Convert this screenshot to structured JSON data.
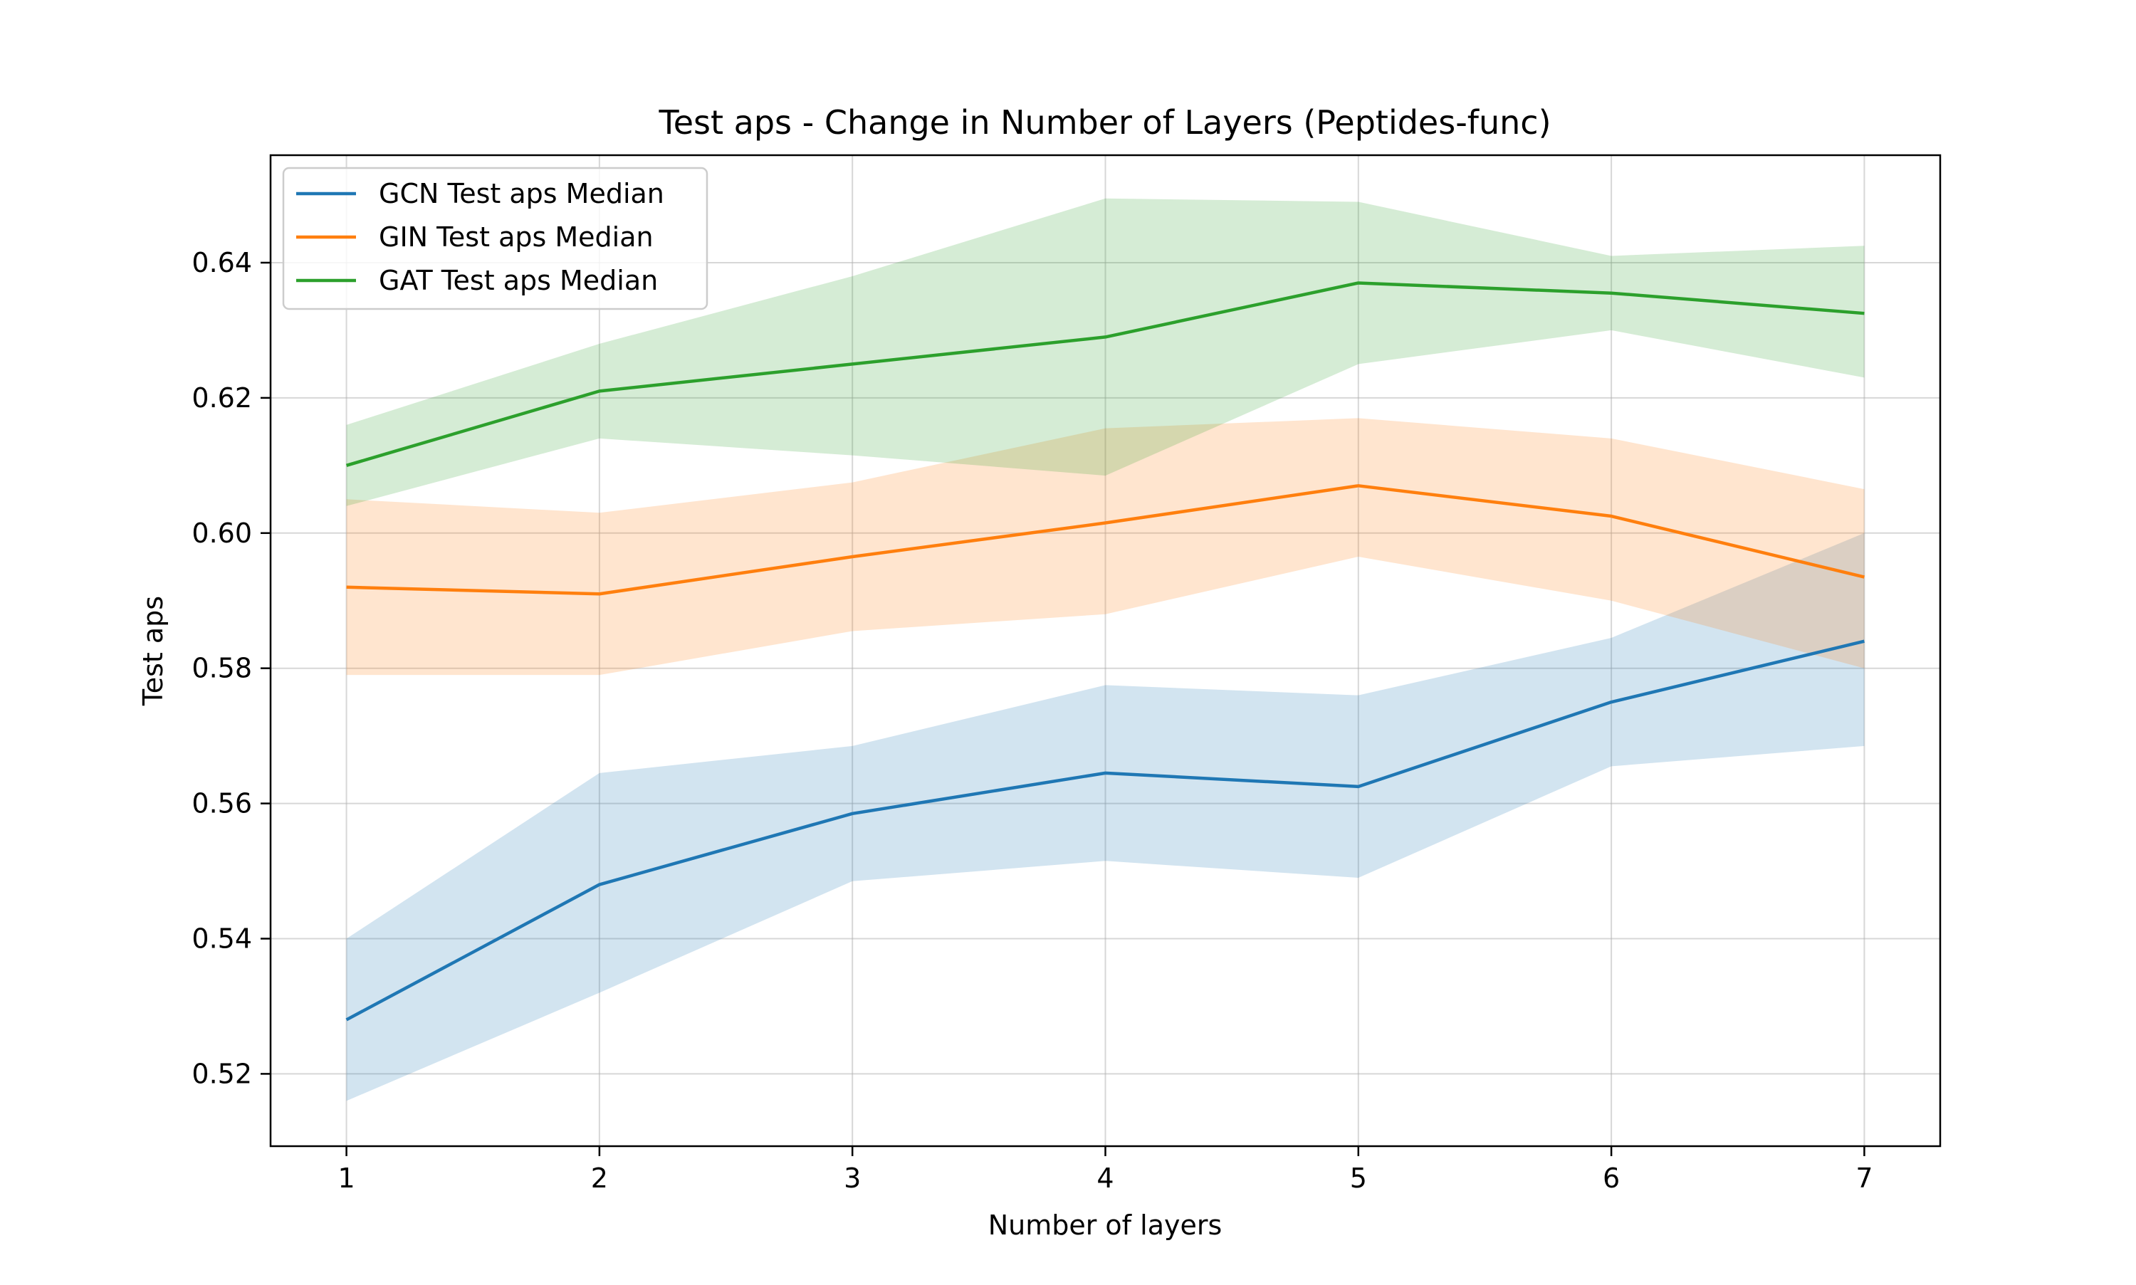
{
  "chart_data": {
    "type": "line",
    "title": "Test aps - Change in Number of Layers (Peptides-func)",
    "xlabel": "Number of layers",
    "ylabel": "Test aps",
    "x": [
      1,
      2,
      3,
      4,
      5,
      6,
      7
    ],
    "xlim": [
      0.7,
      7.3
    ],
    "ylim": [
      0.5093,
      0.6559
    ],
    "xticks": [
      1,
      2,
      3,
      4,
      5,
      6,
      7
    ],
    "xtick_labels": [
      "1",
      "2",
      "3",
      "4",
      "5",
      "6",
      "7"
    ],
    "yticks": [
      0.52,
      0.54,
      0.56,
      0.58,
      0.6,
      0.62,
      0.64
    ],
    "ytick_labels": [
      "0.52",
      "0.54",
      "0.56",
      "0.58",
      "0.60",
      "0.62",
      "0.64"
    ],
    "grid": true,
    "legend_position": "upper-left",
    "series": [
      {
        "name": "GCN Test aps Median",
        "color": "#1f77b4",
        "values": [
          0.528,
          0.548,
          0.5585,
          0.5645,
          0.5625,
          0.575,
          0.584
        ],
        "band_lower": [
          0.516,
          0.532,
          0.5485,
          0.5515,
          0.549,
          0.5655,
          0.5685
        ],
        "band_upper": [
          0.54,
          0.5645,
          0.5685,
          0.5775,
          0.576,
          0.5845,
          0.6
        ]
      },
      {
        "name": "GIN Test aps Median",
        "color": "#ff7f0e",
        "values": [
          0.592,
          0.591,
          0.5965,
          0.6015,
          0.607,
          0.6025,
          0.5935
        ],
        "band_lower": [
          0.579,
          0.579,
          0.5855,
          0.588,
          0.5965,
          0.59,
          0.58
        ],
        "band_upper": [
          0.605,
          0.603,
          0.6075,
          0.6155,
          0.617,
          0.614,
          0.6065
        ]
      },
      {
        "name": "GAT Test aps Median",
        "color": "#2ca02c",
        "values": [
          0.61,
          0.621,
          0.625,
          0.629,
          0.637,
          0.6355,
          0.6325
        ],
        "band_lower": [
          0.604,
          0.614,
          0.6115,
          0.6085,
          0.625,
          0.63,
          0.623
        ],
        "band_upper": [
          0.616,
          0.628,
          0.638,
          0.6495,
          0.649,
          0.641,
          0.6425
        ]
      }
    ]
  }
}
